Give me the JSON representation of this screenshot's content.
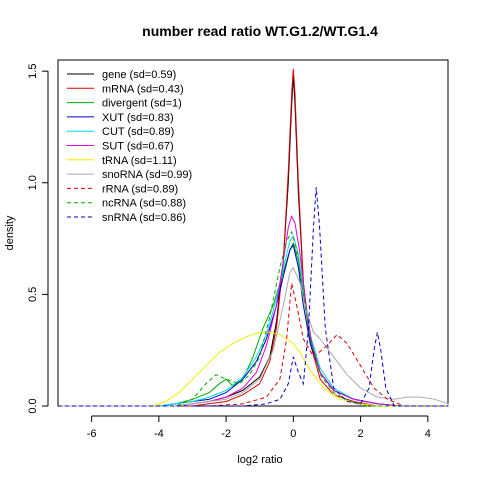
{
  "chart_data": {
    "type": "line",
    "title": "number read ratio WT.G1.2/WT.G1.4",
    "xlabel": "log2 ratio",
    "ylabel": "density",
    "xlim": [
      -7,
      4.6
    ],
    "ylim": [
      0,
      1.55
    ],
    "x_ticks": [
      -6,
      -4,
      -2,
      0,
      2,
      4
    ],
    "y_ticks": [
      0.0,
      0.5,
      1.0,
      1.5
    ],
    "x_tick_labels": [
      "-6",
      "-4",
      "-2",
      "0",
      "2",
      "4"
    ],
    "y_tick_labels": [
      "0.0",
      "0.5",
      "1.0",
      "1.5"
    ],
    "grid": false,
    "legend_position": "top-left",
    "series": [
      {
        "name": "gene (sd=0.59)",
        "color": "#000000",
        "dash": "solid",
        "points": [
          [
            -3.5,
            0
          ],
          [
            -3,
            0.01
          ],
          [
            -2.5,
            0.02
          ],
          [
            -2,
            0.04
          ],
          [
            -1.5,
            0.07
          ],
          [
            -1,
            0.13
          ],
          [
            -0.7,
            0.22
          ],
          [
            -0.5,
            0.38
          ],
          [
            -0.3,
            0.65
          ],
          [
            -0.15,
            1.0
          ],
          [
            -0.05,
            1.35
          ],
          [
            0,
            1.48
          ],
          [
            0.05,
            1.35
          ],
          [
            0.15,
            0.95
          ],
          [
            0.3,
            0.55
          ],
          [
            0.5,
            0.3
          ],
          [
            0.8,
            0.15
          ],
          [
            1.2,
            0.07
          ],
          [
            1.8,
            0.03
          ],
          [
            2.5,
            0.01
          ],
          [
            3.2,
            0
          ]
        ]
      },
      {
        "name": "mRNA (sd=0.43)",
        "color": "#dd0000",
        "dash": "solid",
        "points": [
          [
            -3,
            0
          ],
          [
            -2.5,
            0.01
          ],
          [
            -2,
            0.02
          ],
          [
            -1.5,
            0.05
          ],
          [
            -1,
            0.1
          ],
          [
            -0.7,
            0.2
          ],
          [
            -0.5,
            0.35
          ],
          [
            -0.3,
            0.65
          ],
          [
            -0.15,
            1.05
          ],
          [
            -0.05,
            1.4
          ],
          [
            0,
            1.51
          ],
          [
            0.05,
            1.4
          ],
          [
            0.15,
            1.0
          ],
          [
            0.3,
            0.55
          ],
          [
            0.5,
            0.28
          ],
          [
            0.8,
            0.12
          ],
          [
            1.2,
            0.05
          ],
          [
            1.8,
            0.02
          ],
          [
            2.5,
            0
          ]
        ]
      },
      {
        "name": "divergent (sd=1)",
        "color": "#00aa00",
        "dash": "solid",
        "points": [
          [
            -4,
            0
          ],
          [
            -3.5,
            0.01
          ],
          [
            -3,
            0.03
          ],
          [
            -2.5,
            0.06
          ],
          [
            -2.2,
            0.1
          ],
          [
            -2,
            0.12
          ],
          [
            -1.8,
            0.09
          ],
          [
            -1.5,
            0.12
          ],
          [
            -1.2,
            0.22
          ],
          [
            -0.9,
            0.35
          ],
          [
            -0.6,
            0.45
          ],
          [
            -0.3,
            0.6
          ],
          [
            -0.1,
            0.7
          ],
          [
            0,
            0.73
          ],
          [
            0.15,
            0.65
          ],
          [
            0.3,
            0.5
          ],
          [
            0.5,
            0.3
          ],
          [
            0.8,
            0.15
          ],
          [
            1.2,
            0.07
          ],
          [
            1.8,
            0.03
          ],
          [
            2.5,
            0.01
          ],
          [
            3.2,
            0
          ]
        ]
      },
      {
        "name": "XUT (sd=0.83)",
        "color": "#0000cc",
        "dash": "solid",
        "points": [
          [
            -4,
            0
          ],
          [
            -3.5,
            0.01
          ],
          [
            -3,
            0.02
          ],
          [
            -2.5,
            0.03
          ],
          [
            -2,
            0.06
          ],
          [
            -1.5,
            0.12
          ],
          [
            -1.1,
            0.2
          ],
          [
            -0.8,
            0.3
          ],
          [
            -0.5,
            0.45
          ],
          [
            -0.3,
            0.58
          ],
          [
            -0.1,
            0.7
          ],
          [
            0,
            0.72
          ],
          [
            0.15,
            0.62
          ],
          [
            0.3,
            0.45
          ],
          [
            0.5,
            0.28
          ],
          [
            0.8,
            0.15
          ],
          [
            1.2,
            0.07
          ],
          [
            1.8,
            0.03
          ],
          [
            2.5,
            0.01
          ],
          [
            3.2,
            0
          ]
        ]
      },
      {
        "name": "CUT (sd=0.89)",
        "color": "#00dddd",
        "dash": "solid",
        "points": [
          [
            -4,
            0
          ],
          [
            -3.5,
            0.01
          ],
          [
            -3,
            0.02
          ],
          [
            -2.5,
            0.04
          ],
          [
            -2,
            0.07
          ],
          [
            -1.5,
            0.13
          ],
          [
            -1.1,
            0.22
          ],
          [
            -0.8,
            0.32
          ],
          [
            -0.5,
            0.48
          ],
          [
            -0.3,
            0.62
          ],
          [
            -0.1,
            0.74
          ],
          [
            0,
            0.76
          ],
          [
            0.15,
            0.68
          ],
          [
            0.3,
            0.52
          ],
          [
            0.5,
            0.32
          ],
          [
            0.8,
            0.17
          ],
          [
            1.2,
            0.08
          ],
          [
            1.8,
            0.03
          ],
          [
            2.5,
            0.01
          ],
          [
            3.2,
            0
          ]
        ]
      },
      {
        "name": "SUT (sd=0.67)",
        "color": "#dd00dd",
        "dash": "solid",
        "points": [
          [
            -3.5,
            0
          ],
          [
            -3,
            0.01
          ],
          [
            -2.5,
            0.02
          ],
          [
            -2,
            0.04
          ],
          [
            -1.5,
            0.08
          ],
          [
            -1.1,
            0.15
          ],
          [
            -0.8,
            0.27
          ],
          [
            -0.5,
            0.45
          ],
          [
            -0.3,
            0.65
          ],
          [
            -0.15,
            0.8
          ],
          [
            -0.05,
            0.85
          ],
          [
            0.05,
            0.82
          ],
          [
            0.2,
            0.68
          ],
          [
            0.35,
            0.48
          ],
          [
            0.55,
            0.28
          ],
          [
            0.8,
            0.15
          ],
          [
            1.2,
            0.07
          ],
          [
            1.8,
            0.03
          ],
          [
            2.5,
            0.01
          ],
          [
            3.2,
            0
          ]
        ]
      },
      {
        "name": "tRNA (sd=1.11)",
        "color": "#eeee00",
        "dash": "solid",
        "points": [
          [
            -4.2,
            0
          ],
          [
            -3.8,
            0.02
          ],
          [
            -3.4,
            0.06
          ],
          [
            -3,
            0.12
          ],
          [
            -2.6,
            0.18
          ],
          [
            -2.2,
            0.24
          ],
          [
            -1.8,
            0.28
          ],
          [
            -1.4,
            0.31
          ],
          [
            -1,
            0.33
          ],
          [
            -0.7,
            0.33
          ],
          [
            -0.4,
            0.32
          ],
          [
            -0.2,
            0.3
          ],
          [
            0,
            0.28
          ],
          [
            0.2,
            0.24
          ],
          [
            0.5,
            0.16
          ],
          [
            0.9,
            0.08
          ],
          [
            1.4,
            0.03
          ],
          [
            2,
            0.01
          ],
          [
            2.5,
            0
          ]
        ]
      },
      {
        "name": "snoRNA (sd=0.99)",
        "color": "#aaaaaa",
        "dash": "solid",
        "points": [
          [
            -3.5,
            0
          ],
          [
            -3,
            0.01
          ],
          [
            -2.5,
            0.02
          ],
          [
            -2,
            0.03
          ],
          [
            -1.5,
            0.06
          ],
          [
            -1,
            0.12
          ],
          [
            -0.6,
            0.25
          ],
          [
            -0.3,
            0.45
          ],
          [
            -0.1,
            0.6
          ],
          [
            0,
            0.62
          ],
          [
            0.2,
            0.55
          ],
          [
            0.4,
            0.42
          ],
          [
            0.6,
            0.33
          ],
          [
            0.8,
            0.3
          ],
          [
            1,
            0.26
          ],
          [
            1.3,
            0.2
          ],
          [
            1.6,
            0.14
          ],
          [
            2,
            0.08
          ],
          [
            2.5,
            0.04
          ],
          [
            3,
            0.03
          ],
          [
            3.4,
            0.04
          ],
          [
            3.8,
            0.04
          ],
          [
            4.2,
            0.03
          ],
          [
            4.6,
            0.01
          ]
        ]
      },
      {
        "name": "rRNA (sd=0.89)",
        "color": "#dd0000",
        "dash": "dashed",
        "points": [
          [
            -2.5,
            0
          ],
          [
            -1.5,
            0.01
          ],
          [
            -0.8,
            0.04
          ],
          [
            -0.4,
            0.12
          ],
          [
            -0.2,
            0.3
          ],
          [
            -0.05,
            0.55
          ],
          [
            0.1,
            0.45
          ],
          [
            0.3,
            0.3
          ],
          [
            0.6,
            0.22
          ],
          [
            1,
            0.27
          ],
          [
            1.3,
            0.32
          ],
          [
            1.6,
            0.28
          ],
          [
            2,
            0.18
          ],
          [
            2.4,
            0.08
          ],
          [
            2.8,
            0.03
          ],
          [
            3.3,
            0
          ]
        ]
      },
      {
        "name": "ncRNA (sd=0.88)",
        "color": "#00aa00",
        "dash": "dashed",
        "points": [
          [
            -3.5,
            0
          ],
          [
            -3,
            0.03
          ],
          [
            -2.6,
            0.1
          ],
          [
            -2.3,
            0.14
          ],
          [
            -2,
            0.12
          ],
          [
            -1.6,
            0.1
          ],
          [
            -1.3,
            0.14
          ],
          [
            -1,
            0.22
          ],
          [
            -0.7,
            0.4
          ],
          [
            -0.4,
            0.62
          ],
          [
            -0.2,
            0.74
          ],
          [
            -0.05,
            0.78
          ],
          [
            0.1,
            0.7
          ],
          [
            0.3,
            0.5
          ],
          [
            0.5,
            0.3
          ],
          [
            0.8,
            0.14
          ],
          [
            1.2,
            0.06
          ],
          [
            1.7,
            0.02
          ],
          [
            2.2,
            0
          ]
        ]
      },
      {
        "name": "snRNA (sd=0.86)",
        "color": "#0000cc",
        "dash": "dashed",
        "points": [
          [
            -1.5,
            0
          ],
          [
            -0.8,
            0.01
          ],
          [
            -0.4,
            0.03
          ],
          [
            -0.15,
            0.1
          ],
          [
            0,
            0.22
          ],
          [
            0.15,
            0.15
          ],
          [
            0.3,
            0.1
          ],
          [
            0.45,
            0.35
          ],
          [
            0.6,
            0.8
          ],
          [
            0.68,
            0.98
          ],
          [
            0.78,
            0.8
          ],
          [
            0.95,
            0.35
          ],
          [
            1.2,
            0.08
          ],
          [
            1.6,
            0.02
          ],
          [
            2,
            0.01
          ],
          [
            2.25,
            0.08
          ],
          [
            2.4,
            0.25
          ],
          [
            2.5,
            0.33
          ],
          [
            2.6,
            0.25
          ],
          [
            2.75,
            0.08
          ],
          [
            3,
            0
          ]
        ]
      }
    ]
  }
}
